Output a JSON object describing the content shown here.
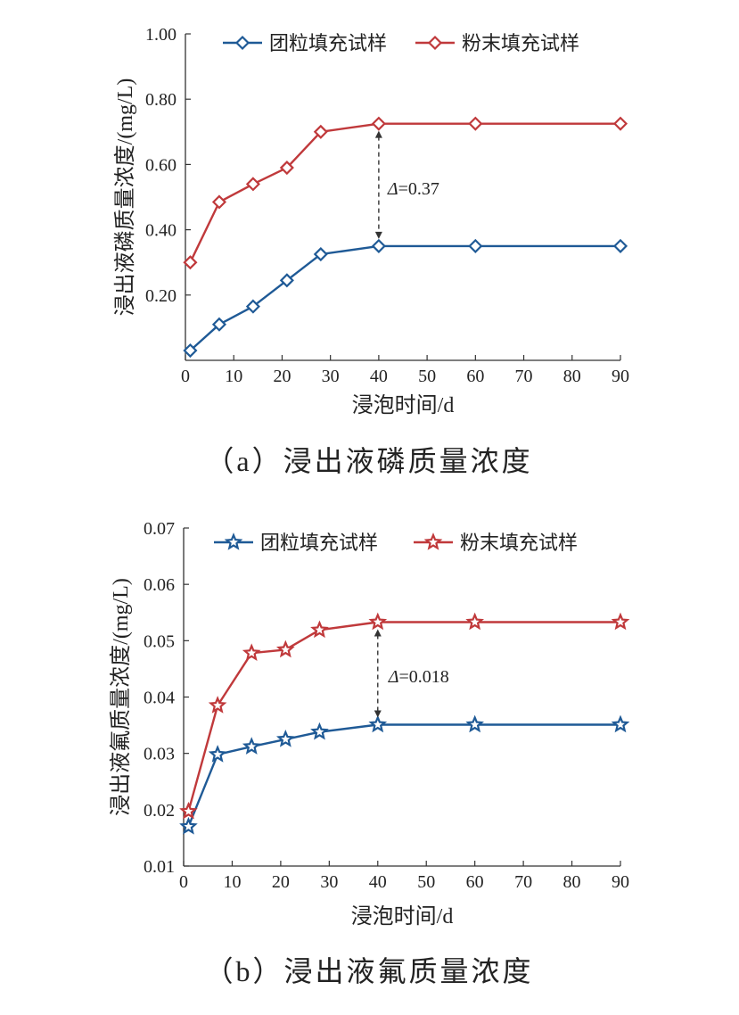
{
  "chart_data": [
    {
      "type": "line",
      "caption": "（a）浸出液磷质量浓度",
      "xlabel": "浸泡时间/d",
      "ylabel": "浸出液磷质量浓度/(mg/L)",
      "x_ticks": [
        "0",
        "10",
        "20",
        "30",
        "40",
        "50",
        "60",
        "70",
        "80",
        "90"
      ],
      "y_ticks": [
        "0.20",
        "0.40",
        "0.60",
        "0.80",
        "1.00"
      ],
      "y_tick_values": [
        0.2,
        0.4,
        0.6,
        0.8,
        1.0
      ],
      "ylim": [
        0.0,
        1.0
      ],
      "xlim": [
        0,
        90
      ],
      "legend": "top",
      "marker": "diamond",
      "series": [
        {
          "name": "团粒填充试样",
          "color": "#1f5a96",
          "x": [
            1,
            7,
            14,
            21,
            28,
            40,
            60,
            90
          ],
          "values": [
            0.03,
            0.11,
            0.165,
            0.245,
            0.325,
            0.35,
            0.35,
            0.35
          ]
        },
        {
          "name": "粉末填充试样",
          "color": "#c0393b",
          "x": [
            1,
            7,
            14,
            21,
            28,
            40,
            60,
            90
          ],
          "values": [
            0.3,
            0.485,
            0.54,
            0.59,
            0.7,
            0.725,
            0.725,
            0.725
          ]
        }
      ],
      "annotation": {
        "symbol": "Δ",
        "text": "=0.37",
        "x": 40,
        "from": 0.725,
        "to": 0.35
      }
    },
    {
      "type": "line",
      "caption": "（b）浸出液氟质量浓度",
      "xlabel": "浸泡时间/d",
      "ylabel": "浸出液氟质量浓度/(mg/L)",
      "x_ticks": [
        "0",
        "10",
        "20",
        "30",
        "40",
        "50",
        "60",
        "70",
        "80",
        "90"
      ],
      "y_ticks": [
        "0.01",
        "0.02",
        "0.03",
        "0.04",
        "0.05",
        "0.06",
        "0.07"
      ],
      "y_tick_values": [
        0.01,
        0.02,
        0.03,
        0.04,
        0.05,
        0.06,
        0.07
      ],
      "ylim": [
        0.01,
        0.07
      ],
      "xlim": [
        0,
        90
      ],
      "legend": "top",
      "marker": "star",
      "series": [
        {
          "name": "团粒填充试样",
          "color": "#1f5a96",
          "x": [
            1,
            7,
            14,
            21,
            28,
            40,
            60,
            90
          ],
          "values": [
            0.017,
            0.0298,
            0.0312,
            0.0325,
            0.0338,
            0.0351,
            0.0351,
            0.0351
          ]
        },
        {
          "name": "粉末填充试样",
          "color": "#c0393b",
          "x": [
            1,
            7,
            14,
            21,
            28,
            40,
            60,
            90
          ],
          "values": [
            0.0197,
            0.0385,
            0.0478,
            0.0484,
            0.0519,
            0.0533,
            0.0533,
            0.0533
          ]
        }
      ],
      "annotation": {
        "symbol": "Δ",
        "text": "=0.018",
        "x": 40,
        "from": 0.0533,
        "to": 0.0351
      }
    }
  ]
}
